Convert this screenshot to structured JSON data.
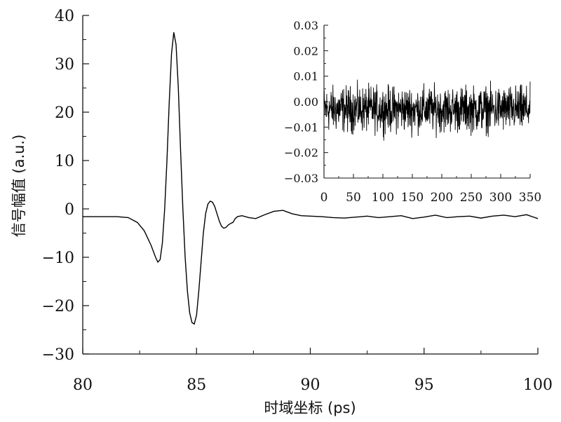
{
  "chart_data": [
    {
      "type": "line",
      "xlabel": "时域坐标 (ps)",
      "ylabel": "信号幅值 (a.u.)",
      "xlim": [
        80,
        100
      ],
      "ylim": [
        -30,
        40
      ],
      "x_ticks": [
        "80",
        "85",
        "90",
        "95",
        "100"
      ],
      "y_ticks": [
        "−30",
        "−20",
        "−10",
        "0",
        "10",
        "20",
        "30",
        "40"
      ],
      "grid": false,
      "series": [
        {
          "x": [
            80.0,
            81.0,
            81.5,
            82.0,
            82.4,
            82.7,
            83.0,
            83.2,
            83.3,
            83.4,
            83.5,
            83.6,
            83.7,
            83.8,
            83.9,
            84.0,
            84.1,
            84.2,
            84.3,
            84.4,
            84.5,
            84.6,
            84.7,
            84.8,
            84.9,
            85.0,
            85.1,
            85.2,
            85.3,
            85.4,
            85.5,
            85.6,
            85.7,
            85.8,
            85.9,
            86.0,
            86.1,
            86.2,
            86.3,
            86.4,
            86.5,
            86.6,
            86.7,
            86.8,
            86.9,
            87.0,
            87.3,
            87.6,
            88.0,
            88.4,
            88.8,
            89.2,
            89.6,
            90.0,
            90.5,
            91.0,
            91.5,
            92.0,
            92.5,
            93.0,
            93.5,
            94.0,
            94.5,
            95.0,
            95.5,
            96.0,
            96.5,
            97.0,
            97.5,
            98.0,
            98.5,
            99.0,
            99.5,
            100.0
          ],
          "y": [
            -1.6,
            -1.6,
            -1.6,
            -1.8,
            -2.8,
            -4.5,
            -7.5,
            -10.0,
            -11.0,
            -10.5,
            -7.0,
            0.0,
            10.0,
            22.0,
            32.0,
            36.5,
            34.0,
            25.0,
            12.0,
            0.0,
            -10.0,
            -17.0,
            -21.5,
            -23.5,
            -23.8,
            -22.0,
            -17.0,
            -11.0,
            -5.0,
            -1.0,
            1.0,
            1.6,
            1.4,
            0.5,
            -1.0,
            -2.5,
            -3.6,
            -4.0,
            -3.8,
            -3.3,
            -3.0,
            -2.8,
            -2.0,
            -1.6,
            -1.5,
            -1.4,
            -1.8,
            -2.0,
            -1.2,
            -0.5,
            -0.3,
            -1.0,
            -1.4,
            -1.5,
            -1.6,
            -1.8,
            -1.9,
            -1.7,
            -1.5,
            -1.8,
            -1.6,
            -1.4,
            -2.0,
            -1.7,
            -1.3,
            -1.8,
            -1.6,
            -1.5,
            -1.9,
            -1.5,
            -1.3,
            -1.6,
            -1.2,
            -2.0
          ]
        }
      ]
    },
    {
      "type": "line",
      "xlabel": "",
      "ylabel": "",
      "xlim": [
        0,
        350
      ],
      "ylim": [
        -0.03,
        0.03
      ],
      "x_ticks": [
        "0",
        "50",
        "100",
        "150",
        "200",
        "250",
        "300",
        "350"
      ],
      "y_ticks": [
        "0.03",
        "0.02",
        "0.01",
        "0.00",
        "−0.01",
        "−0.02",
        "−0.03"
      ],
      "grid": false,
      "series": [
        {
          "x_start": 0,
          "x_end": 350,
          "center": -0.003,
          "noise_amplitude": 0.013,
          "note_on_rendering": "dense noisy trace spanning the full x range"
        }
      ]
    }
  ],
  "colors": {
    "line": "#000000",
    "axis": "#111111",
    "background": "#ffffff"
  }
}
